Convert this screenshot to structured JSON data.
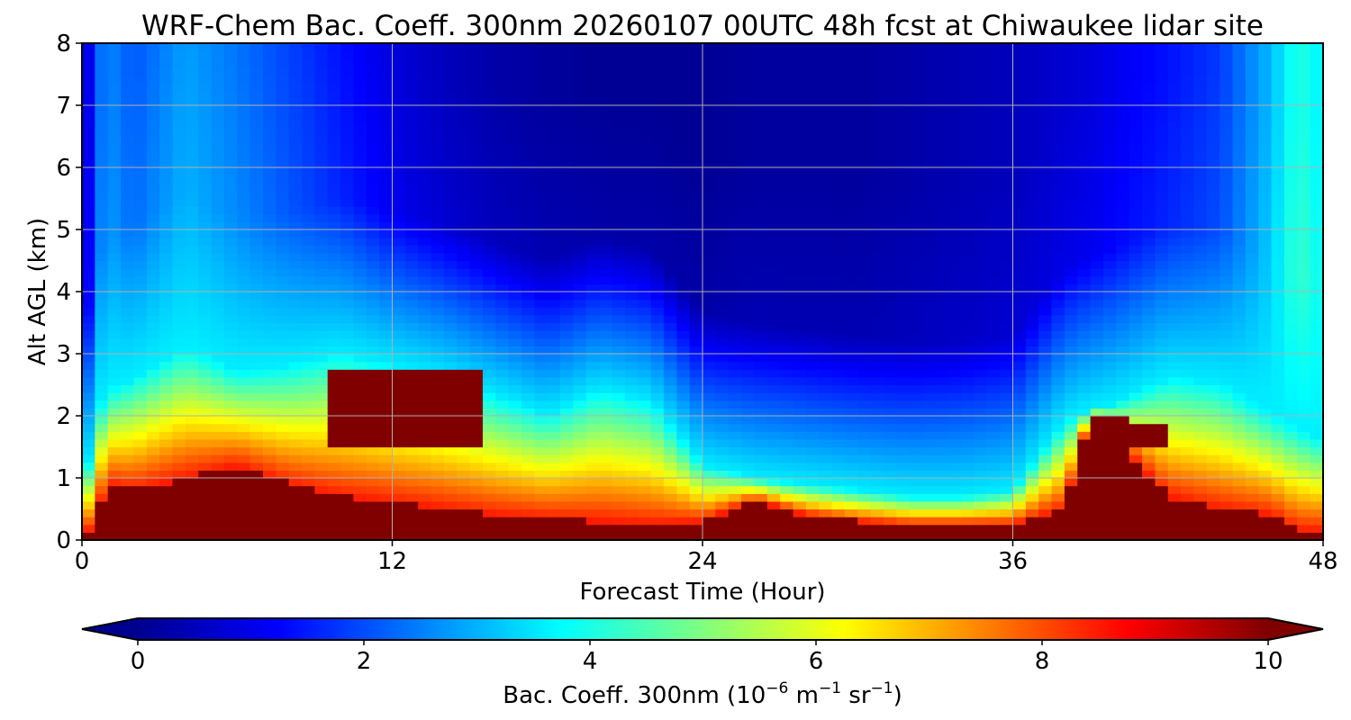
{
  "chart_data": {
    "type": "heatmap",
    "title": "WRF-Chem Bac. Coeff. 300nm  20260107 00UTC 48h fcst at Chiwaukee lidar site",
    "xlabel": "Forecast Time (Hour)",
    "ylabel": "Alt AGL (km)",
    "xlim": [
      0,
      48
    ],
    "ylim": [
      0,
      8
    ],
    "x_ticks": [
      "0",
      "12",
      "24",
      "36",
      "48"
    ],
    "y_ticks": [
      "0",
      "1",
      "2",
      "3",
      "4",
      "5",
      "6",
      "7",
      "8"
    ],
    "grid": true,
    "colorbar": {
      "colormap": "jet",
      "range": [
        0,
        10
      ],
      "extend": "both",
      "ticks": [
        "0",
        "2",
        "4",
        "6",
        "8",
        "10"
      ],
      "label_main": "Bac. Coeff. 300nm  (10",
      "label_exp1": "−6",
      "label_unit1": " m",
      "label_exp2": "−1",
      "label_unit2": " sr",
      "label_exp3": "−1",
      "label_end": ")"
    },
    "profile_hours": [
      0,
      0.5,
      1,
      2,
      4,
      6,
      8,
      10,
      12,
      14,
      16,
      18,
      20,
      22,
      24,
      26,
      28,
      30,
      32,
      34,
      36,
      38,
      39,
      40,
      42,
      44,
      46,
      47,
      48
    ],
    "surface_peak_top_km": [
      0,
      0.3,
      0.9,
      0.8,
      1.0,
      1.2,
      0.9,
      0.7,
      0.6,
      0.5,
      0.4,
      0.35,
      0.3,
      0.25,
      0.3,
      0.65,
      0.4,
      0.3,
      0.25,
      0.25,
      0.25,
      0.5,
      2.0,
      1.6,
      0.7,
      0.5,
      0.4,
      0.15,
      0.15
    ],
    "elevated_layer_top_km": [
      0.5,
      2.0,
      2.4,
      2.6,
      3.1,
      2.7,
      2.8,
      3.0,
      2.8,
      2.6,
      2.3,
      2.0,
      2.4,
      2.2,
      1.2,
      1.0,
      0.9,
      0.8,
      0.7,
      0.7,
      0.8,
      1.9,
      2.1,
      2.2,
      2.6,
      2.5,
      2.0,
      1.8,
      1.6
    ],
    "upper_level_value": [
      0.5,
      2.5,
      3.0,
      2.5,
      3.2,
      2.8,
      2.3,
      1.8,
      1.3,
      1.0,
      0.8,
      0.7,
      0.6,
      0.6,
      0.6,
      0.7,
      0.7,
      0.7,
      0.8,
      0.9,
      1.0,
      1.2,
      1.3,
      1.5,
      1.8,
      2.2,
      3.5,
      4.5,
      4.0
    ],
    "max_value_hotspots": [
      {
        "hour_range": [
          9.5,
          15.5
        ],
        "alt_range_km": [
          1.5,
          2.8
        ],
        "value": 10
      },
      {
        "hour_range": [
          39,
          40.5
        ],
        "alt_range_km": [
          0.4,
          2.0
        ],
        "value": 10
      },
      {
        "hour_range": [
          40.5,
          42
        ],
        "alt_range_km": [
          1.5,
          1.9
        ],
        "value": 10
      }
    ]
  }
}
